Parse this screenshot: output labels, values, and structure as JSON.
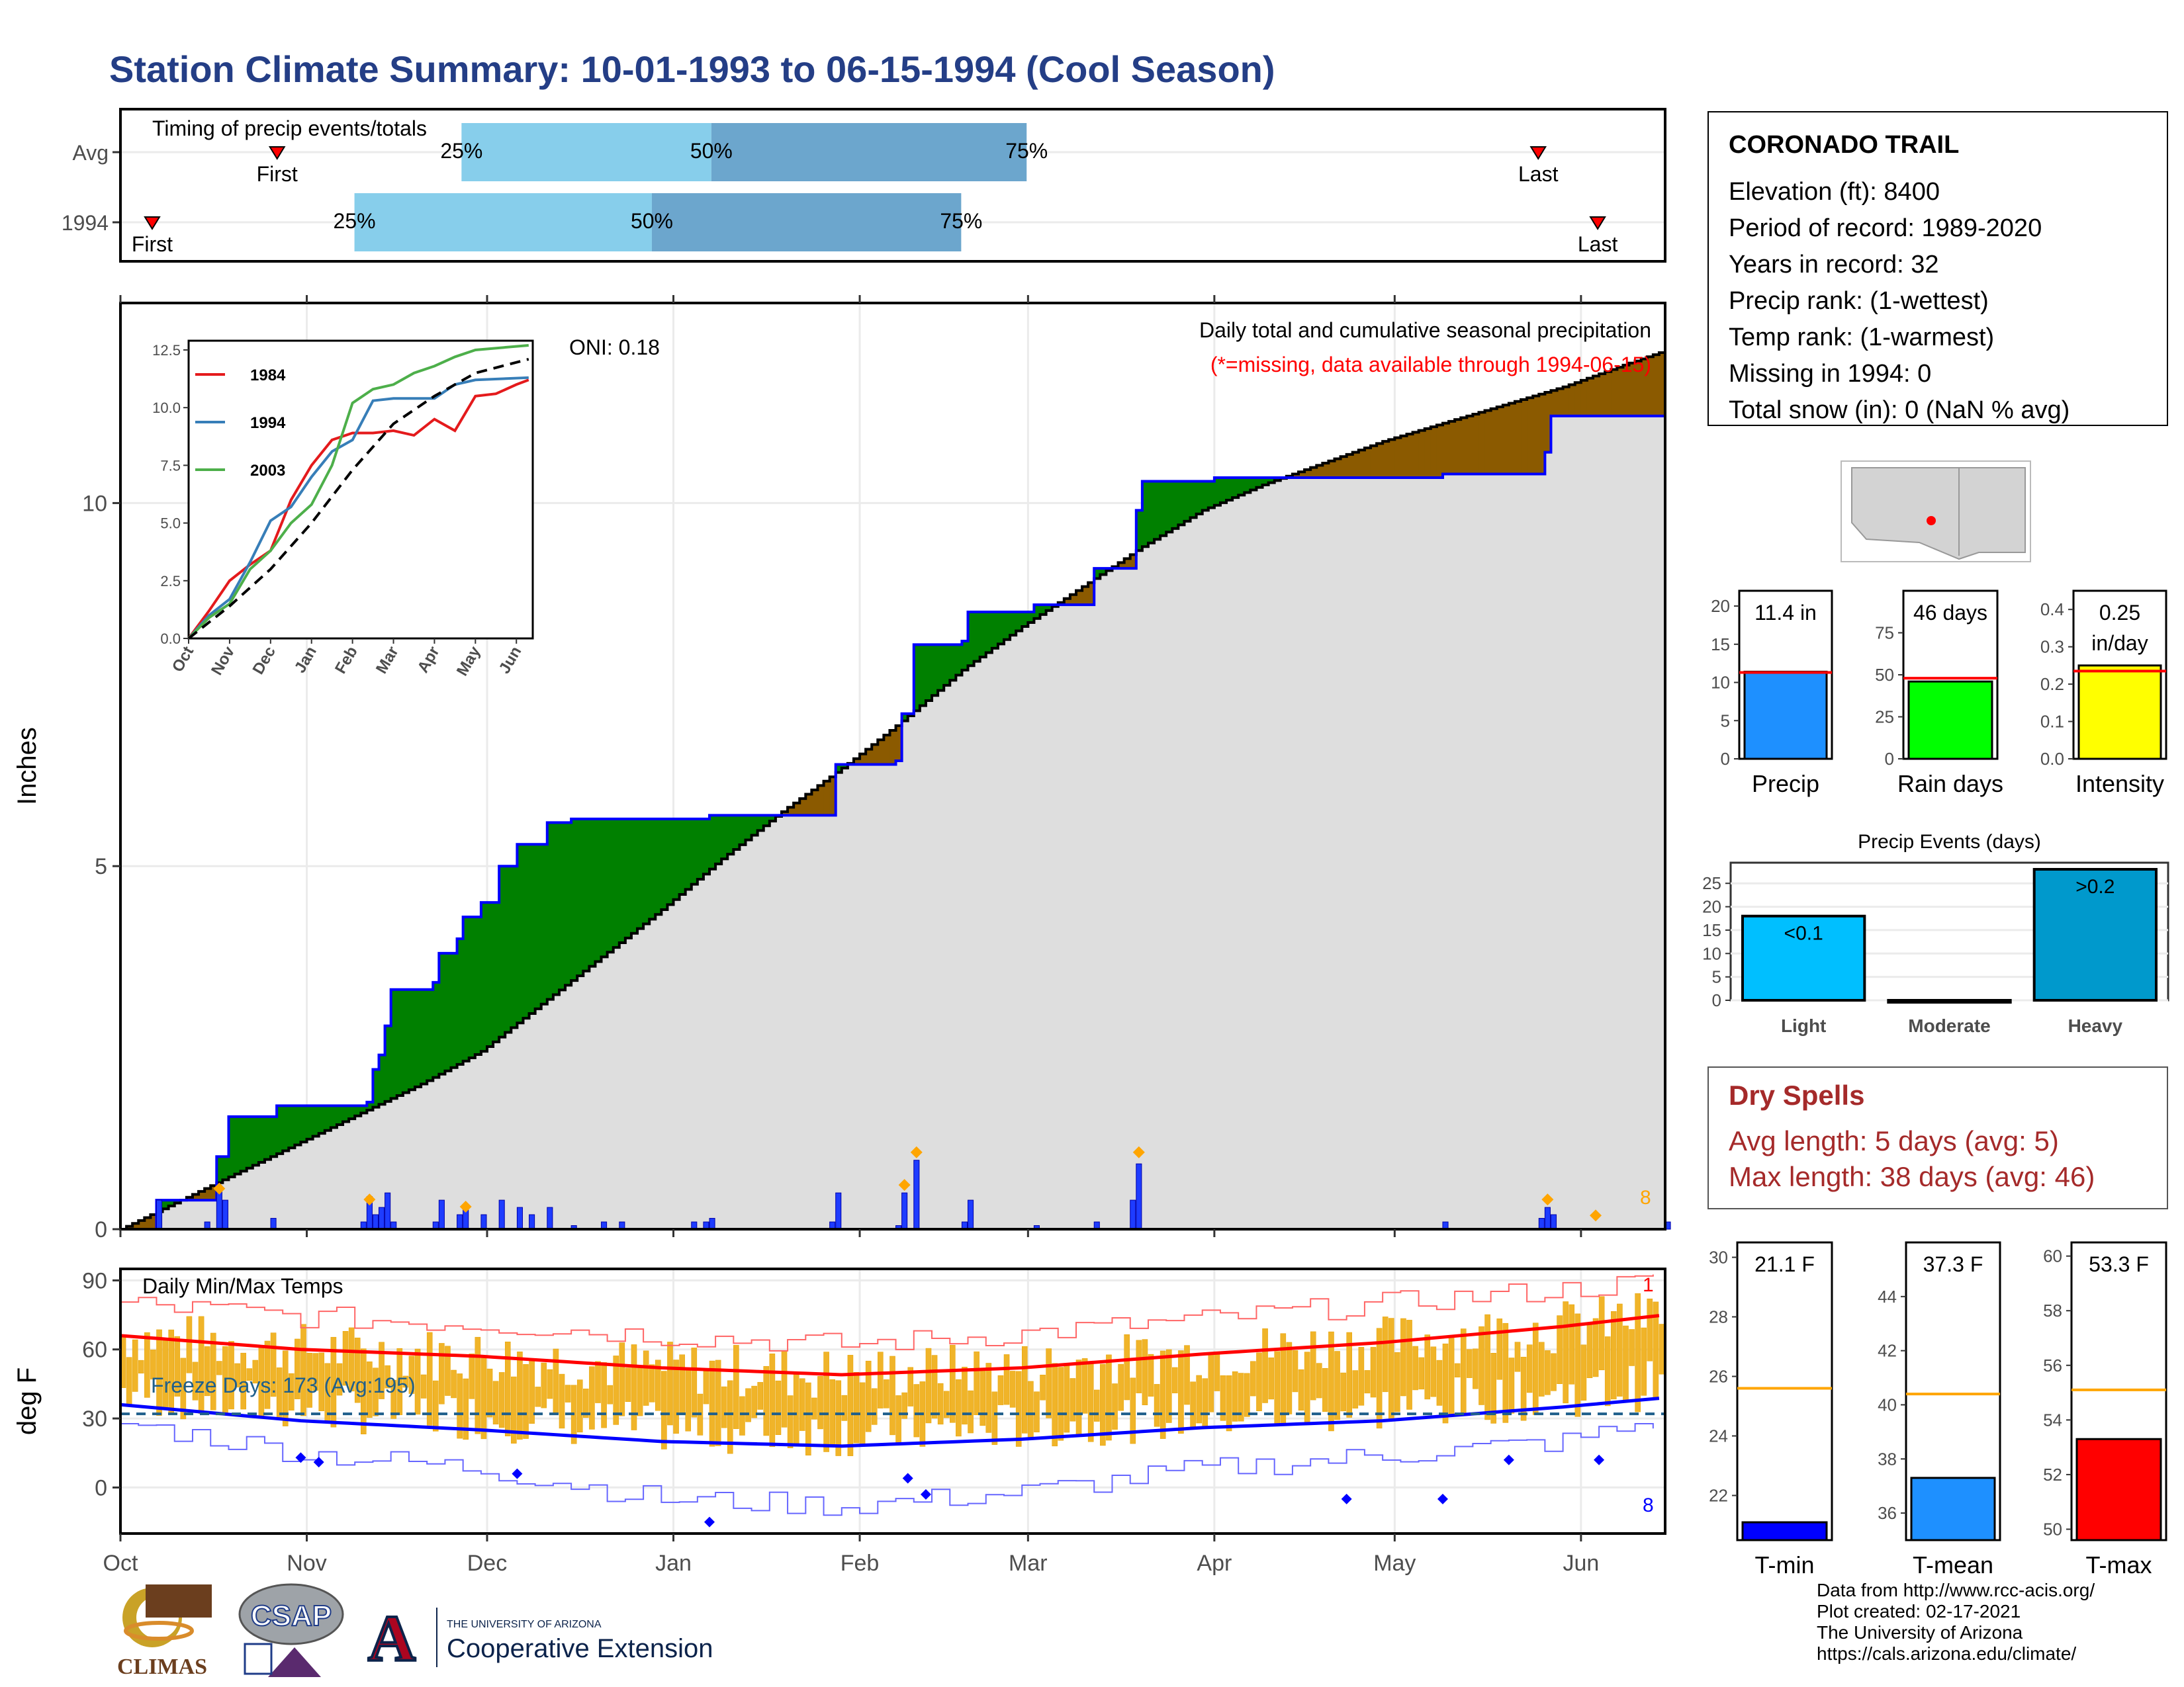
{
  "page_title": "Station Climate Summary: 10-01-1993 to 06-15-1994 (Cool Season)",
  "colors": {
    "title": "#243e86",
    "precip_fill": "#dedede",
    "wet_fill": "#008000",
    "dry_fill": "#8b5a00",
    "obs_line": "#0000ff",
    "avg_line": "#000000",
    "bar_fill": "#ffa500"
  },
  "station": {
    "name": "CORONADO TRAIL",
    "lines": [
      "Elevation (ft): 8400",
      "Period of record: 1989-2020",
      "Years in record: 32",
      "Precip rank:  (1-wettest)",
      "Temp rank:  (1-warmest)",
      "Missing in 1994: 0",
      "Total snow (in): 0 (NaN % avg)"
    ]
  },
  "dry_spells": {
    "title": "Dry Spells",
    "avg": "Avg length: 5 days (avg: 5)",
    "max": "Max length: 38 days (avg: 46)"
  },
  "footer": [
    "Data from http://www.rcc-acis.org/",
    "Plot created: 02-17-2021",
    "The University of Arizona",
    "https://cals.arizona.edu/climate/"
  ],
  "logos": {
    "climas": "CLIMAS",
    "csap": "CSAP",
    "uofa_small": "THE UNIVERSITY OF ARIZONA",
    "uofa_big": "Cooperative Extension",
    "uofa_letter": "A"
  },
  "chart_data": [
    {
      "id": "timing",
      "type": "bar",
      "title": "Timing of precip events/totals",
      "rows": [
        {
          "label": "Avg",
          "first": "Oct 26",
          "q25": "Nov 26",
          "q50": "Jan 7",
          "q75": "Mar 1",
          "last": "May 26"
        },
        {
          "label": "1994",
          "first": "Oct 5",
          "q25": "Nov 8",
          "q50": "Dec 28",
          "q75": "Feb 18",
          "last": "Jun 5"
        }
      ],
      "markers": [
        "First",
        "Last"
      ],
      "pct_labels": [
        "25%",
        "50%",
        "75%"
      ],
      "colors": [
        "#87ceeb",
        "#6ca6cd"
      ]
    },
    {
      "id": "precip",
      "type": "area",
      "ylabel": "Inches",
      "ylim": [
        0,
        12.5
      ],
      "yticks": [
        0,
        5,
        10
      ],
      "xticks": [
        "Oct",
        "Nov",
        "Dec",
        "Jan",
        "Feb",
        "Mar",
        "Apr",
        "May",
        "Jun"
      ],
      "oni": "ONI: 0.18",
      "caption": "Daily total and cumulative seasonal precipitation",
      "subcaption": "(*=missing, data available through 1994-06-15)",
      "count_label": "8",
      "avg_curve": [
        [
          0,
          0
        ],
        [
          10,
          0.4
        ],
        [
          20,
          0.8
        ],
        [
          30,
          1.2
        ],
        [
          40,
          1.6
        ],
        [
          50,
          2.0
        ],
        [
          60,
          2.45
        ],
        [
          70,
          3.1
        ],
        [
          80,
          3.75
        ],
        [
          90,
          4.4
        ],
        [
          100,
          5.1
        ],
        [
          110,
          5.75
        ],
        [
          120,
          6.35
        ],
        [
          130,
          7.0
        ],
        [
          140,
          7.7
        ],
        [
          150,
          8.3
        ],
        [
          160,
          8.85
        ],
        [
          170,
          9.4
        ],
        [
          180,
          9.9
        ],
        [
          190,
          10.25
        ],
        [
          200,
          10.55
        ],
        [
          210,
          10.85
        ],
        [
          220,
          11.1
        ],
        [
          230,
          11.35
        ],
        [
          240,
          11.6
        ],
        [
          250,
          11.9
        ],
        [
          257,
          12.1
        ]
      ],
      "obs_curve": [
        [
          0,
          0
        ],
        [
          6,
          0.4
        ],
        [
          14,
          0.4
        ],
        [
          16,
          1.0
        ],
        [
          18,
          1.55
        ],
        [
          25,
          1.55
        ],
        [
          26,
          1.7
        ],
        [
          34,
          1.7
        ],
        [
          41,
          1.75
        ],
        [
          42,
          2.2
        ],
        [
          43,
          2.4
        ],
        [
          44,
          2.8
        ],
        [
          45,
          3.3
        ],
        [
          51,
          3.3
        ],
        [
          52,
          3.4
        ],
        [
          53,
          3.8
        ],
        [
          56,
          4.0
        ],
        [
          57,
          4.3
        ],
        [
          60,
          4.5
        ],
        [
          63,
          5.0
        ],
        [
          66,
          5.3
        ],
        [
          71,
          5.6
        ],
        [
          75,
          5.65
        ],
        [
          95,
          5.65
        ],
        [
          98,
          5.7
        ],
        [
          118,
          5.7
        ],
        [
          119,
          6.4
        ],
        [
          129,
          6.45
        ],
        [
          130,
          7.1
        ],
        [
          132,
          8.05
        ],
        [
          140,
          8.1
        ],
        [
          141,
          8.5
        ],
        [
          152,
          8.6
        ],
        [
          162,
          9.1
        ],
        [
          168,
          9.1
        ],
        [
          169,
          9.9
        ],
        [
          170,
          10.3
        ],
        [
          181,
          10.3
        ],
        [
          182,
          10.35
        ],
        [
          220,
          10.4
        ],
        [
          236,
          10.4
        ],
        [
          237,
          10.7
        ],
        [
          238,
          11.2
        ],
        [
          257,
          11.3
        ]
      ],
      "daily_bars": [
        [
          6,
          0.4
        ],
        [
          14,
          0.1
        ],
        [
          16,
          0.6
        ],
        [
          17,
          0.4
        ],
        [
          25,
          0.15
        ],
        [
          40,
          0.1
        ],
        [
          41,
          0.45
        ],
        [
          42,
          0.2
        ],
        [
          43,
          0.3
        ],
        [
          44,
          0.5
        ],
        [
          45,
          0.1
        ],
        [
          52,
          0.1
        ],
        [
          53,
          0.4
        ],
        [
          56,
          0.2
        ],
        [
          57,
          0.3
        ],
        [
          60,
          0.2
        ],
        [
          63,
          0.4
        ],
        [
          66,
          0.3
        ],
        [
          68,
          0.2
        ],
        [
          71,
          0.3
        ],
        [
          75,
          0.05
        ],
        [
          80,
          0.1
        ],
        [
          83,
          0.1
        ],
        [
          95,
          0.1
        ],
        [
          97,
          0.1
        ],
        [
          98,
          0.15
        ],
        [
          118,
          0.1
        ],
        [
          119,
          0.5
        ],
        [
          129,
          0.05
        ],
        [
          130,
          0.5
        ],
        [
          132,
          0.95
        ],
        [
          140,
          0.1
        ],
        [
          141,
          0.4
        ],
        [
          152,
          0.05
        ],
        [
          162,
          0.1
        ],
        [
          168,
          0.4
        ],
        [
          169,
          0.9
        ],
        [
          220,
          0.1
        ],
        [
          236,
          0.15
        ],
        [
          237,
          0.3
        ],
        [
          238,
          0.2
        ],
        [
          257,
          0.1
        ]
      ],
      "highlight_days": [
        [
          16,
          0.45
        ],
        [
          41,
          0.3
        ],
        [
          57,
          0.2
        ],
        [
          130,
          0.5
        ],
        [
          132,
          0.95
        ],
        [
          169,
          0.95
        ],
        [
          237,
          0.3
        ],
        [
          245,
          0.08
        ]
      ]
    },
    {
      "id": "inset",
      "type": "line",
      "xticks": [
        "Oct",
        "Nov",
        "Dec",
        "Jan",
        "Feb",
        "Mar",
        "Apr",
        "May",
        "Jun"
      ],
      "yticks": [
        "0.0",
        "2.5",
        "5.0",
        "7.5",
        "10.0",
        "12.5"
      ],
      "ylim": [
        0,
        12.5
      ],
      "series": [
        {
          "name": "1984",
          "color": "#e41a1c",
          "values": [
            [
              0,
              0
            ],
            [
              0.5,
              1.2
            ],
            [
              1,
              2.5
            ],
            [
              1.5,
              3.2
            ],
            [
              2,
              3.8
            ],
            [
              2.5,
              6.0
            ],
            [
              3,
              7.5
            ],
            [
              3.5,
              8.6
            ],
            [
              4,
              8.9
            ],
            [
              4.5,
              8.9
            ],
            [
              5,
              9.0
            ],
            [
              5.5,
              8.8
            ],
            [
              6,
              9.5
            ],
            [
              6.5,
              9.0
            ],
            [
              7,
              10.5
            ],
            [
              7.5,
              10.6
            ],
            [
              8,
              11.0
            ],
            [
              8.3,
              11.2
            ]
          ]
        },
        {
          "name": "1994",
          "color": "#377eb8",
          "values": [
            [
              0,
              0
            ],
            [
              0.5,
              1.0
            ],
            [
              1,
              1.7
            ],
            [
              1.5,
              3.3
            ],
            [
              2,
              5.1
            ],
            [
              2.5,
              5.7
            ],
            [
              3,
              7.0
            ],
            [
              3.5,
              8.1
            ],
            [
              4,
              8.6
            ],
            [
              4.5,
              10.3
            ],
            [
              5,
              10.4
            ],
            [
              5.5,
              10.4
            ],
            [
              6,
              10.4
            ],
            [
              6.5,
              11.0
            ],
            [
              7,
              11.2
            ],
            [
              8.3,
              11.3
            ]
          ]
        },
        {
          "name": "2003",
          "color": "#4daf4a",
          "values": [
            [
              0,
              0
            ],
            [
              0.5,
              0.9
            ],
            [
              1,
              1.5
            ],
            [
              1.5,
              3.0
            ],
            [
              2,
              3.8
            ],
            [
              2.5,
              5.0
            ],
            [
              3,
              5.8
            ],
            [
              3.5,
              7.5
            ],
            [
              4,
              10.2
            ],
            [
              4.5,
              10.8
            ],
            [
              5,
              11.0
            ],
            [
              5.5,
              11.5
            ],
            [
              6,
              11.8
            ],
            [
              6.5,
              12.2
            ],
            [
              7,
              12.5
            ],
            [
              8.3,
              12.7
            ]
          ]
        },
        {
          "name": "",
          "color": "#000000",
          "values": [
            [
              0,
              0
            ],
            [
              1,
              1.4
            ],
            [
              2,
              3.0
            ],
            [
              3,
              5.0
            ],
            [
              4,
              7.3
            ],
            [
              5,
              9.3
            ],
            [
              6,
              10.5
            ],
            [
              7,
              11.5
            ],
            [
              8.3,
              12.1
            ]
          ]
        }
      ]
    },
    {
      "id": "temps",
      "type": "line",
      "title": "Daily Min/Max Temps",
      "ylabel": "deg F",
      "ylim": [
        -20,
        95
      ],
      "yticks": [
        0,
        30,
        60,
        90
      ],
      "freeze_label": "Freeze Days: 173 (Avg:195)",
      "record_high_label": "1",
      "record_low_label": "8",
      "avg_max": [
        [
          0,
          66
        ],
        [
          30,
          60
        ],
        [
          60,
          57
        ],
        [
          90,
          52
        ],
        [
          120,
          49
        ],
        [
          150,
          52
        ],
        [
          180,
          58
        ],
        [
          210,
          63
        ],
        [
          240,
          70
        ],
        [
          257,
          75
        ]
      ],
      "avg_min": [
        [
          0,
          36
        ],
        [
          30,
          29
        ],
        [
          60,
          25
        ],
        [
          90,
          20
        ],
        [
          120,
          18
        ],
        [
          150,
          21
        ],
        [
          180,
          26
        ],
        [
          210,
          29
        ],
        [
          240,
          35
        ],
        [
          257,
          39
        ]
      ],
      "rec_max": [
        [
          0,
          80
        ],
        [
          30,
          74
        ],
        [
          60,
          71
        ],
        [
          90,
          66
        ],
        [
          120,
          62
        ],
        [
          150,
          67
        ],
        [
          180,
          73
        ],
        [
          210,
          80
        ],
        [
          240,
          86
        ],
        [
          257,
          90
        ]
      ],
      "rec_min": [
        [
          0,
          28
        ],
        [
          30,
          15
        ],
        [
          60,
          8
        ],
        [
          90,
          -5
        ],
        [
          120,
          -8
        ],
        [
          150,
          -2
        ],
        [
          180,
          8
        ],
        [
          210,
          14
        ],
        [
          240,
          20
        ],
        [
          257,
          30
        ]
      ]
    },
    {
      "id": "gauge_precip",
      "type": "bar",
      "value": 11.4,
      "label": "11.4 in",
      "avg": 11.3,
      "ylim": [
        0,
        22
      ],
      "yticks": [
        0,
        5,
        10,
        15,
        20
      ],
      "xlabel": "Precip",
      "color": "#1e90ff"
    },
    {
      "id": "gauge_raindays",
      "type": "bar",
      "value": 46,
      "label": "46 days",
      "avg": 48,
      "ylim": [
        0,
        100
      ],
      "yticks": [
        0,
        25,
        50,
        75
      ],
      "xlabel": "Rain days",
      "color": "#00ff00"
    },
    {
      "id": "gauge_intensity",
      "type": "bar",
      "value": 0.25,
      "label": "0.25",
      "label2": "in/day",
      "avg": 0.235,
      "ylim": [
        0,
        0.45
      ],
      "yticks": [
        "0.0",
        "0.1",
        "0.2",
        "0.3",
        "0.4"
      ],
      "xlabel": "Intensity",
      "color": "#ffff00"
    },
    {
      "id": "events",
      "type": "bar",
      "title": "Precip Events (days)",
      "categories": [
        "Light",
        "Moderate",
        "Heavy"
      ],
      "values": [
        18,
        0,
        28
      ],
      "labels": [
        "<0.1",
        "",
        ">0.2"
      ],
      "ylim": [
        0,
        28
      ],
      "yticks": [
        0,
        5,
        10,
        15,
        20,
        25
      ],
      "colors": [
        "#00bfff",
        "#1e90ff",
        "#0099cc"
      ]
    },
    {
      "id": "gauge_tmin",
      "type": "bar",
      "value": 21.1,
      "label": "21.1 F",
      "avg": 25.6,
      "ylim": [
        20.5,
        30.5
      ],
      "yticks": [
        22,
        24,
        26,
        28,
        30
      ],
      "xlabel": "T-min",
      "color": "#0000ff"
    },
    {
      "id": "gauge_tmean",
      "type": "bar",
      "value": 37.3,
      "label": "37.3 F",
      "avg": 40.4,
      "ylim": [
        35,
        46
      ],
      "yticks": [
        36,
        38,
        40,
        42,
        44
      ],
      "xlabel": "T-mean",
      "color": "#1e90ff"
    },
    {
      "id": "gauge_tmax",
      "type": "bar",
      "value": 53.3,
      "label": "53.3 F",
      "avg": 55.1,
      "ylim": [
        49.6,
        60.5
      ],
      "yticks": [
        50,
        52,
        54,
        56,
        58,
        60
      ],
      "xlabel": "T-max",
      "color": "#ff0000"
    }
  ]
}
